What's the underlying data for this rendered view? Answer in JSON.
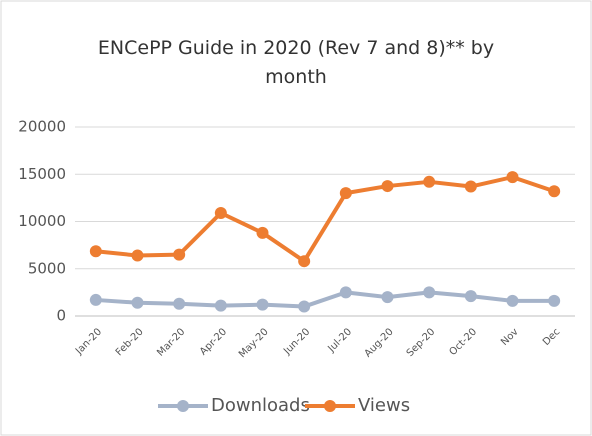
{
  "chart_data": {
    "type": "line",
    "title": "ENCePP Guide in 2020 (Rev 7 and 8)** by month",
    "categories": [
      "Jan-20",
      "Feb-20",
      "Mar-20",
      "Apr-20",
      "May-20",
      "Jun-20",
      "Jul-20",
      "Aug-20",
      "Sep-20",
      "Oct-20",
      "Nov",
      "Dec"
    ],
    "series": [
      {
        "name": "Downloads",
        "color": "#a5b3c9",
        "values": [
          1700,
          1400,
          1300,
          1100,
          1200,
          1000,
          2500,
          2000,
          2500,
          2100,
          1600,
          1600
        ]
      },
      {
        "name": "Views",
        "color": "#ed7d31",
        "values": [
          6850,
          6400,
          6500,
          10900,
          8800,
          5800,
          13000,
          13750,
          14200,
          13700,
          14700,
          13200
        ]
      }
    ],
    "ylim": [
      0,
      20000
    ],
    "yticks": [
      0,
      5000,
      10000,
      15000,
      20000
    ],
    "grid": true,
    "legend": "bottom"
  }
}
